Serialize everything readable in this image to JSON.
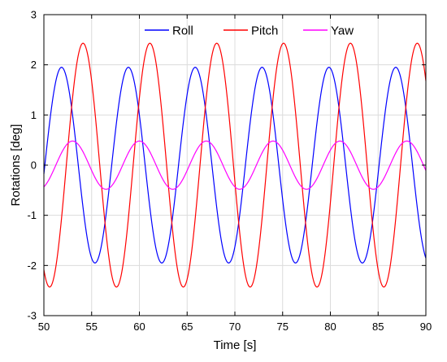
{
  "chart_data": {
    "type": "line",
    "title": "",
    "xlabel": "Time [s]",
    "ylabel": "Rotations [deg]",
    "xlim": [
      50,
      90
    ],
    "ylim": [
      -3,
      3
    ],
    "xticks": [
      50,
      55,
      60,
      65,
      70,
      75,
      80,
      85,
      90
    ],
    "yticks": [
      3,
      2,
      1,
      0,
      -1,
      -2,
      -3
    ],
    "grid": true,
    "legend_position": "top-center",
    "series": [
      {
        "name": "Roll",
        "color": "#0000ff",
        "amplitude": 1.95,
        "period": 7.0,
        "peak_times": [
          51.85,
          58.85,
          65.85,
          72.85,
          79.85,
          86.85
        ]
      },
      {
        "name": "Pitch",
        "color": "#ff0000",
        "amplitude": 2.43,
        "period": 7.0,
        "peak_times": [
          54.1,
          61.1,
          68.1,
          75.1,
          82.1,
          89.1
        ]
      },
      {
        "name": "Yaw",
        "color": "#ff00ff",
        "amplitude": 0.48,
        "period": 7.0,
        "peak_times": [
          53.0,
          60.0,
          67.0,
          74.0,
          81.0,
          88.0
        ]
      }
    ]
  }
}
